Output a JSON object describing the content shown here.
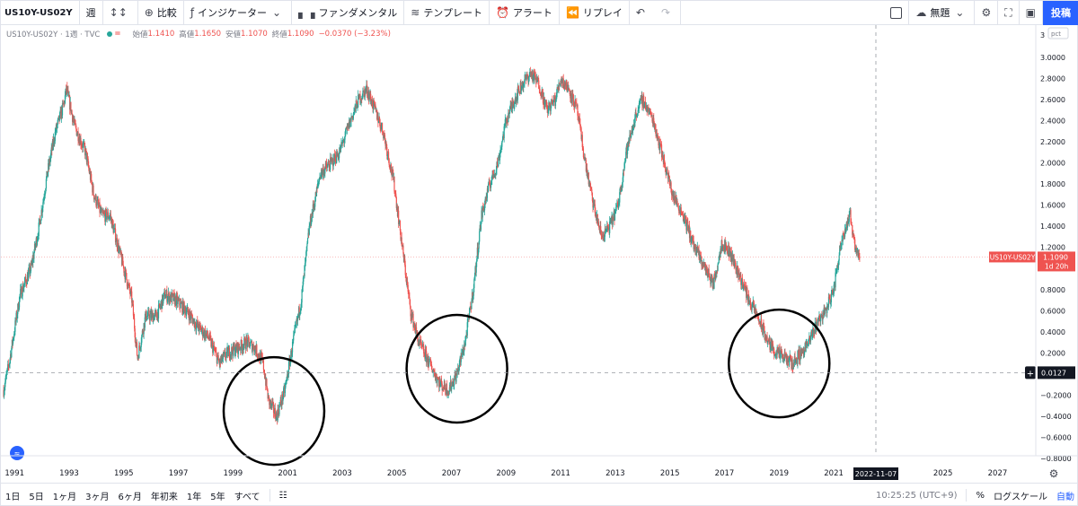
{
  "toolbar": {
    "symbol": "US10Y-US02Y",
    "interval": "週",
    "compare": "比較",
    "indicators": "インジケーター",
    "fundamentals": "ファンダメンタル",
    "templates": "テンプレート",
    "alert": "アラート",
    "replay": "リプレイ",
    "layout_name": "無題",
    "publish": "投稿"
  },
  "legend": {
    "title": "US10Y-US02Y · 1週 · TVC",
    "open_label": "始値",
    "open": "1.1410",
    "high_label": "高値",
    "high": "1.1650",
    "low_label": "安値",
    "low": "1.1070",
    "close_label": "終値",
    "close": "1.1090",
    "change": "−0.0370 (−3.23%)"
  },
  "price_axis": {
    "unit": "pct",
    "top_label": "3",
    "ticks": [
      "3.0000",
      "2.8000",
      "2.6000",
      "2.4000",
      "2.2000",
      "2.0000",
      "1.8000",
      "1.6000",
      "1.4000",
      "1.2000",
      "0.8000",
      "0.6000",
      "0.4000",
      "0.2000",
      "−0.2000",
      "−0.4000",
      "−0.6000",
      "−0.8000"
    ],
    "last_symbol": "US10Y-US02Y",
    "last_price": "1.1090",
    "countdown": "1d 20h",
    "crosshair_price": "0.0127"
  },
  "time_axis": {
    "ticks": [
      "1991",
      "1993",
      "1995",
      "1997",
      "1999",
      "2001",
      "2003",
      "2005",
      "2007",
      "2009",
      "2011",
      "2013",
      "2015",
      "2017",
      "2019",
      "2021",
      "2025",
      "2027"
    ],
    "crosshair_date": "2022-11-07"
  },
  "bottombar": {
    "ranges": [
      "1日",
      "5日",
      "1ヶ月",
      "3ヶ月",
      "6ヶ月",
      "年初来",
      "1年",
      "5年",
      "すべて"
    ],
    "time": "10:25:25 (UTC+9)",
    "percent": "%",
    "log": "ログスケール",
    "auto": "自動"
  },
  "colors": {
    "up": "#26a69a",
    "down": "#ef5350",
    "accent": "#2962ff"
  },
  "chart_data": {
    "type": "candlestick",
    "ylabel": "pct",
    "ylim": [
      -0.8,
      3.0
    ],
    "xlim": [
      1990.5,
      2028.4
    ],
    "path": [
      [
        1990.6,
        -0.15
      ],
      [
        1990.8,
        0.1
      ],
      [
        1991.2,
        0.75
      ],
      [
        1991.6,
        1.0
      ],
      [
        1991.9,
        1.4
      ],
      [
        1992.2,
        1.9
      ],
      [
        1992.5,
        2.3
      ],
      [
        1992.8,
        2.55
      ],
      [
        1992.9,
        2.7
      ],
      [
        1993.2,
        2.35
      ],
      [
        1993.6,
        2.1
      ],
      [
        1993.9,
        1.7
      ],
      [
        1994.2,
        1.5
      ],
      [
        1994.5,
        1.5
      ],
      [
        1994.8,
        1.2
      ],
      [
        1995.1,
        0.9
      ],
      [
        1995.3,
        0.7
      ],
      [
        1995.5,
        0.15
      ],
      [
        1995.8,
        0.55
      ],
      [
        1996.2,
        0.55
      ],
      [
        1996.5,
        0.75
      ],
      [
        1996.9,
        0.7
      ],
      [
        1997.3,
        0.6
      ],
      [
        1997.7,
        0.45
      ],
      [
        1998.1,
        0.35
      ],
      [
        1998.5,
        0.1
      ],
      [
        1998.8,
        0.2
      ],
      [
        1999.2,
        0.25
      ],
      [
        1999.5,
        0.3
      ],
      [
        1999.8,
        0.25
      ],
      [
        2000.1,
        0.1
      ],
      [
        2000.3,
        -0.25
      ],
      [
        2000.6,
        -0.4
      ],
      [
        2000.9,
        -0.15
      ],
      [
        2001.2,
        0.3
      ],
      [
        2001.5,
        0.7
      ],
      [
        2001.8,
        1.4
      ],
      [
        2002.2,
        1.9
      ],
      [
        2002.6,
        2.0
      ],
      [
        2002.9,
        2.1
      ],
      [
        2003.3,
        2.4
      ],
      [
        2003.6,
        2.6
      ],
      [
        2003.9,
        2.7
      ],
      [
        2004.2,
        2.5
      ],
      [
        2004.5,
        2.3
      ],
      [
        2004.9,
        1.8
      ],
      [
        2005.2,
        1.2
      ],
      [
        2005.5,
        0.6
      ],
      [
        2005.8,
        0.3
      ],
      [
        2006.2,
        0.1
      ],
      [
        2006.6,
        -0.1
      ],
      [
        2006.9,
        -0.15
      ],
      [
        2007.2,
        0.0
      ],
      [
        2007.5,
        0.3
      ],
      [
        2007.8,
        0.8
      ],
      [
        2008.1,
        1.5
      ],
      [
        2008.4,
        1.8
      ],
      [
        2008.7,
        2.0
      ],
      [
        2009.0,
        2.4
      ],
      [
        2009.3,
        2.6
      ],
      [
        2009.6,
        2.75
      ],
      [
        2009.9,
        2.85
      ],
      [
        2010.2,
        2.75
      ],
      [
        2010.5,
        2.5
      ],
      [
        2010.8,
        2.6
      ],
      [
        2011.0,
        2.8
      ],
      [
        2011.3,
        2.7
      ],
      [
        2011.6,
        2.5
      ],
      [
        2011.9,
        2.0
      ],
      [
        2012.2,
        1.6
      ],
      [
        2012.5,
        1.3
      ],
      [
        2012.8,
        1.4
      ],
      [
        2013.1,
        1.6
      ],
      [
        2013.4,
        2.1
      ],
      [
        2013.8,
        2.5
      ],
      [
        2014.0,
        2.6
      ],
      [
        2014.4,
        2.4
      ],
      [
        2014.8,
        2.0
      ],
      [
        2015.1,
        1.7
      ],
      [
        2015.5,
        1.5
      ],
      [
        2015.9,
        1.2
      ],
      [
        2016.3,
        1.0
      ],
      [
        2016.6,
        0.85
      ],
      [
        2016.9,
        1.25
      ],
      [
        2017.2,
        1.15
      ],
      [
        2017.6,
        0.9
      ],
      [
        2017.9,
        0.7
      ],
      [
        2018.2,
        0.55
      ],
      [
        2018.6,
        0.3
      ],
      [
        2018.9,
        0.2
      ],
      [
        2019.2,
        0.15
      ],
      [
        2019.5,
        0.1
      ],
      [
        2019.8,
        0.2
      ],
      [
        2020.1,
        0.3
      ],
      [
        2020.4,
        0.5
      ],
      [
        2020.7,
        0.6
      ],
      [
        2021.0,
        0.8
      ],
      [
        2021.3,
        1.3
      ],
      [
        2021.6,
        1.5
      ],
      [
        2021.8,
        1.2
      ],
      [
        2021.95,
        1.109
      ]
    ],
    "last_value": 1.109,
    "crosshair": {
      "value": 0.0127,
      "date": "2022-11-07"
    },
    "annotations": [
      {
        "type": "ellipse",
        "x": 2000.5,
        "y": -0.35
      },
      {
        "type": "ellipse",
        "x": 2007.2,
        "y": 0.05
      },
      {
        "type": "ellipse",
        "x": 2019.0,
        "y": 0.1
      }
    ]
  }
}
